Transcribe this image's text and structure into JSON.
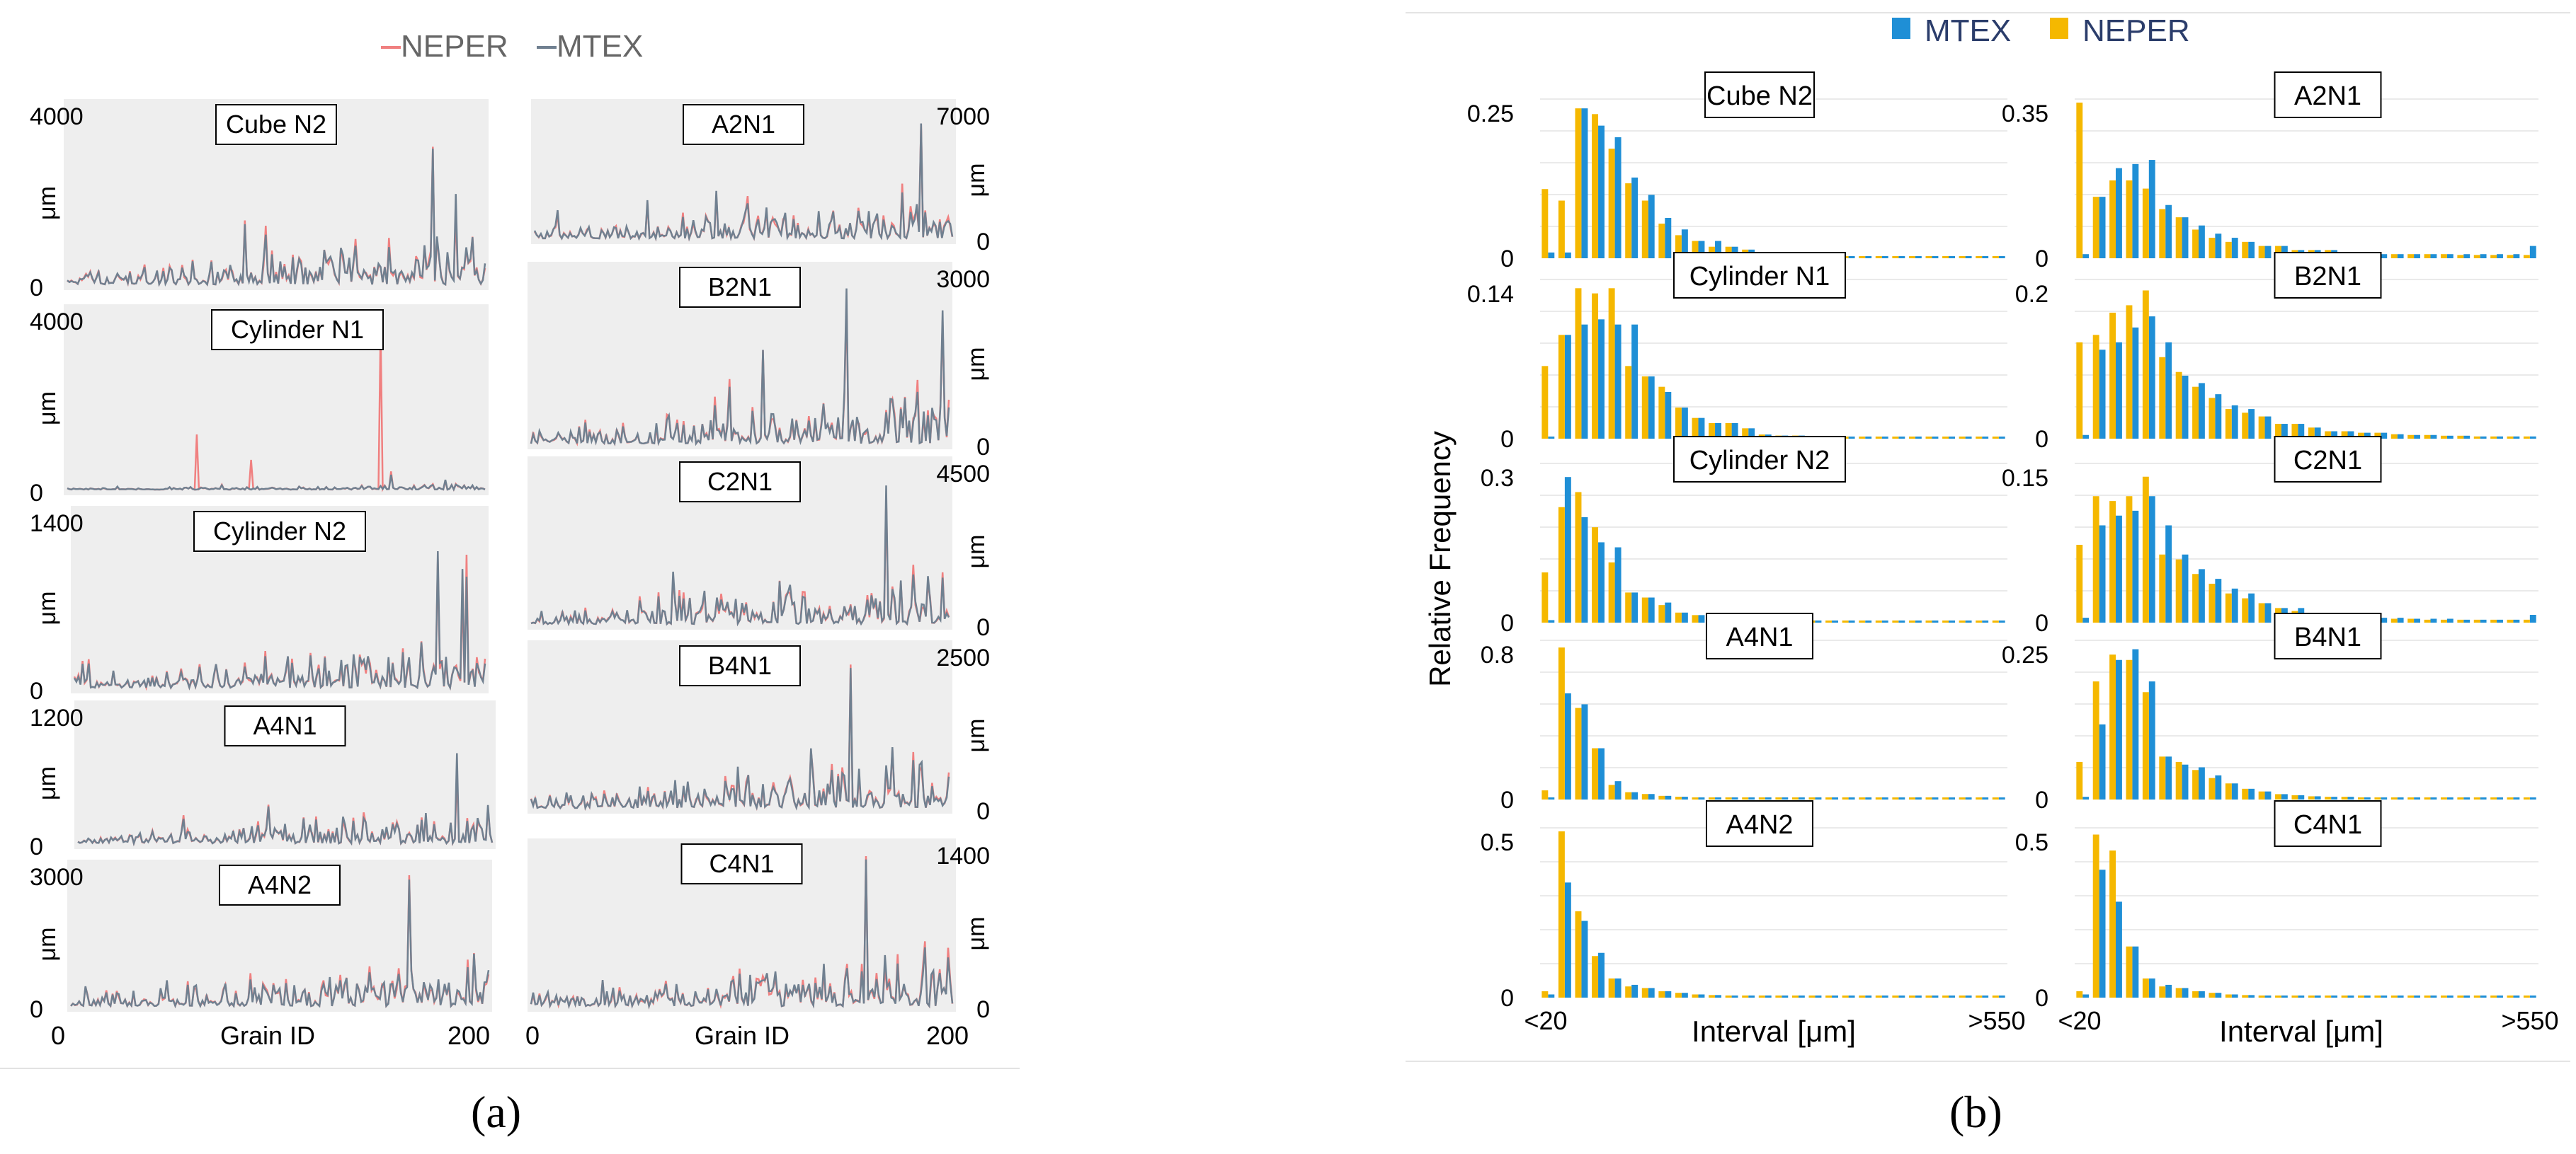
{
  "colors": {
    "neper_line": "#f08080",
    "mtex_line": "#708090",
    "mtex_bar": "#1f8fd6",
    "neper_bar": "#f5b800",
    "panel_bg": "#eeeeee",
    "grid": "#e3e3e3"
  },
  "chart_data": [
    {
      "id": "a",
      "type": "line",
      "sublabel": "(a)",
      "legend": {
        "neper": "–NEPER",
        "mtex": "–MTEX"
      },
      "x_tick_labels": [
        "0",
        "Grain ID",
        "200"
      ],
      "y_unit": "μm",
      "xlim": [
        0,
        200
      ],
      "panels": [
        {
          "title": "Cube N2",
          "ymax": 4000,
          "ytick_max": "4000",
          "ytick_min": "0",
          "peak": 3200,
          "seed": 11,
          "spikes": []
        },
        {
          "title": "Cylinder N1",
          "ymax": 4000,
          "ytick_max": "4000",
          "ytick_min": "0",
          "peak": 350,
          "seed": 23,
          "spikes": [
            [
              150,
              3800
            ],
            [
              62,
              1300
            ],
            [
              88,
              700
            ]
          ]
        },
        {
          "title": "Cylinder N2",
          "ymax": 1400,
          "ytick_max": "1400",
          "ytick_min": "0",
          "peak": 1150,
          "seed": 37,
          "spikes": []
        },
        {
          "title": "A4N1",
          "ymax": 1200,
          "ytick_max": "1200",
          "ytick_min": "0",
          "peak": 850,
          "seed": 41,
          "spikes": []
        },
        {
          "title": "A4N2",
          "ymax": 3000,
          "ytick_max": "3000",
          "ytick_min": "0",
          "peak": 2900,
          "seed": 53,
          "spikes": []
        },
        {
          "title": "A2N1",
          "ymax": 7000,
          "ytick_max": "7000",
          "ytick_min": "0",
          "peak": 6500,
          "seed": 67,
          "spikes": []
        },
        {
          "title": "B2N1",
          "ymax": 3000,
          "ytick_max": "3000",
          "ytick_min": "0",
          "peak": 2800,
          "seed": 71,
          "spikes": []
        },
        {
          "title": "C2N1",
          "ymax": 4500,
          "ytick_max": "4500",
          "ytick_min": "0",
          "peak": 4100,
          "seed": 83,
          "spikes": []
        },
        {
          "title": "B4N1",
          "ymax": 2500,
          "ytick_max": "2500",
          "ytick_min": "0",
          "peak": 2300,
          "seed": 97,
          "spikes": []
        },
        {
          "title": "C4N1",
          "ymax": 1400,
          "ytick_max": "1400",
          "ytick_min": "0",
          "peak": 1350,
          "seed": 101,
          "spikes": []
        }
      ]
    },
    {
      "id": "b",
      "type": "bar",
      "sublabel": "(b)",
      "legend": {
        "mtex": "MTEX",
        "neper": "NEPER"
      },
      "ylabel": "Relative Frequency",
      "xlabel": "Interval [μm]",
      "x_tick_labels": [
        "<20",
        ">550"
      ],
      "n_bins": 28,
      "panels": [
        {
          "title": "Cube N2",
          "ytick_max": "0.25",
          "ytick_min": "0",
          "ymax": 0.27,
          "mtex": [
            0.01,
            0.01,
            0.26,
            0.23,
            0.21,
            0.14,
            0.11,
            0.07,
            0.05,
            0.03,
            0.03,
            0.02,
            0.015,
            0.01,
            0.005,
            0.005,
            0.004,
            0.003,
            0.003,
            0.002,
            0.002,
            0.002,
            0.002,
            0.002,
            0.002,
            0.002,
            0.002,
            0.003
          ],
          "neper": [
            0.12,
            0.1,
            0.26,
            0.25,
            0.19,
            0.13,
            0.1,
            0.06,
            0.04,
            0.03,
            0.02,
            0.02,
            0.015,
            0.01,
            0.005,
            0.004,
            0.003,
            0.003,
            0.003,
            0.002,
            0.002,
            0.002,
            0.002,
            0.002,
            0.002,
            0.002,
            0.002,
            0.002
          ]
        },
        {
          "title": "A2N1",
          "ytick_max": "0.35",
          "ytick_min": "0",
          "ymax": 0.38,
          "mtex": [
            0.01,
            0.15,
            0.22,
            0.23,
            0.24,
            0.13,
            0.1,
            0.08,
            0.06,
            0.05,
            0.04,
            0.03,
            0.03,
            0.02,
            0.02,
            0.02,
            0.015,
            0.015,
            0.01,
            0.01,
            0.01,
            0.01,
            0.01,
            0.01,
            0.01,
            0.01,
            0.01,
            0.03
          ],
          "neper": [
            0.38,
            0.15,
            0.19,
            0.19,
            0.17,
            0.12,
            0.1,
            0.07,
            0.05,
            0.04,
            0.04,
            0.03,
            0.03,
            0.02,
            0.02,
            0.02,
            0.015,
            0.01,
            0.01,
            0.01,
            0.01,
            0.01,
            0.01,
            0.008,
            0.008,
            0.008,
            0.008,
            0.008
          ]
        },
        {
          "title": "Cylinder N1",
          "ytick_max": "0.14",
          "ytick_min": "0",
          "ymax": 0.15,
          "mtex": [
            0.002,
            0.1,
            0.11,
            0.115,
            0.11,
            0.11,
            0.06,
            0.045,
            0.03,
            0.02,
            0.015,
            0.015,
            0.01,
            0.004,
            0.003,
            0.003,
            0.002,
            0.002,
            0.002,
            0.002,
            0.002,
            0.002,
            0.002,
            0.002,
            0.002,
            0.002,
            0.002,
            0.002
          ],
          "neper": [
            0.07,
            0.1,
            0.145,
            0.14,
            0.145,
            0.07,
            0.06,
            0.05,
            0.03,
            0.02,
            0.015,
            0.015,
            0.01,
            0.004,
            0.003,
            0.003,
            0.002,
            0.002,
            0.002,
            0.002,
            0.002,
            0.002,
            0.002,
            0.002,
            0.002,
            0.002,
            0.002,
            0.002
          ]
        },
        {
          "title": "B2N1",
          "ytick_max": "0.2",
          "ytick_min": "0",
          "ymax": 0.21,
          "mtex": [
            0.005,
            0.12,
            0.13,
            0.15,
            0.165,
            0.13,
            0.085,
            0.075,
            0.06,
            0.045,
            0.04,
            0.03,
            0.02,
            0.02,
            0.015,
            0.01,
            0.01,
            0.008,
            0.008,
            0.006,
            0.005,
            0.005,
            0.004,
            0.004,
            0.003,
            0.003,
            0.003,
            0.003
          ],
          "neper": [
            0.13,
            0.14,
            0.17,
            0.18,
            0.2,
            0.11,
            0.09,
            0.07,
            0.055,
            0.04,
            0.035,
            0.03,
            0.02,
            0.02,
            0.015,
            0.01,
            0.01,
            0.008,
            0.008,
            0.006,
            0.005,
            0.005,
            0.004,
            0.004,
            0.003,
            0.003,
            0.003,
            0.003
          ]
        },
        {
          "title": "Cylinder N2",
          "ytick_max": "0.3",
          "ytick_min": "0",
          "ymax": 0.31,
          "mtex": [
            0.005,
            0.29,
            0.21,
            0.16,
            0.15,
            0.06,
            0.05,
            0.04,
            0.02,
            0.015,
            0.01,
            0.008,
            0.006,
            0.005,
            0.004,
            0.003,
            0.003,
            0.002,
            0.002,
            0.002,
            0.002,
            0.002,
            0.002,
            0.002,
            0.002,
            0.002,
            0.002,
            0.002
          ],
          "neper": [
            0.1,
            0.23,
            0.26,
            0.19,
            0.12,
            0.06,
            0.05,
            0.035,
            0.02,
            0.015,
            0.01,
            0.008,
            0.006,
            0.005,
            0.004,
            0.003,
            0.003,
            0.002,
            0.002,
            0.002,
            0.002,
            0.002,
            0.002,
            0.002,
            0.002,
            0.002,
            0.002,
            0.002
          ]
        },
        {
          "title": "C2N1",
          "ytick_max": "0.15",
          "ytick_min": "0",
          "ymax": 0.16,
          "mtex": [
            0.005,
            0.1,
            0.11,
            0.115,
            0.13,
            0.1,
            0.07,
            0.055,
            0.045,
            0.035,
            0.03,
            0.02,
            0.015,
            0.015,
            0.01,
            0.01,
            0.008,
            0.006,
            0.005,
            0.005,
            0.004,
            0.004,
            0.004,
            0.003,
            0.003,
            0.003,
            0.003,
            0.008
          ],
          "neper": [
            0.08,
            0.13,
            0.125,
            0.13,
            0.15,
            0.07,
            0.065,
            0.05,
            0.04,
            0.03,
            0.025,
            0.02,
            0.015,
            0.012,
            0.01,
            0.008,
            0.006,
            0.005,
            0.005,
            0.004,
            0.004,
            0.003,
            0.003,
            0.003,
            0.003,
            0.003,
            0.003,
            0.003
          ]
        },
        {
          "title": "A4N1",
          "ytick_max": "0.8",
          "ytick_min": "0",
          "ymax": 0.85,
          "mtex": [
            0.01,
            0.58,
            0.52,
            0.28,
            0.1,
            0.04,
            0.03,
            0.02,
            0.015,
            0.01,
            0.008,
            0.006,
            0.005,
            0.004,
            0.003,
            0.003,
            0.002,
            0.002,
            0.002,
            0.002,
            0.002,
            0.002,
            0.002,
            0.002,
            0.002,
            0.002,
            0.002,
            0.002
          ],
          "neper": [
            0.05,
            0.83,
            0.5,
            0.28,
            0.08,
            0.04,
            0.03,
            0.02,
            0.015,
            0.01,
            0.008,
            0.006,
            0.005,
            0.004,
            0.003,
            0.003,
            0.002,
            0.002,
            0.002,
            0.002,
            0.002,
            0.002,
            0.002,
            0.002,
            0.002,
            0.002,
            0.002,
            0.002
          ]
        },
        {
          "title": "B4N1",
          "ytick_max": "0.25",
          "ytick_min": "0",
          "ymax": 0.29,
          "mtex": [
            0.005,
            0.14,
            0.26,
            0.28,
            0.22,
            0.08,
            0.065,
            0.06,
            0.045,
            0.03,
            0.02,
            0.015,
            0.01,
            0.008,
            0.006,
            0.005,
            0.005,
            0.004,
            0.003,
            0.003,
            0.003,
            0.002,
            0.002,
            0.002,
            0.002,
            0.002,
            0.002,
            0.002
          ],
          "neper": [
            0.07,
            0.22,
            0.27,
            0.26,
            0.2,
            0.08,
            0.07,
            0.055,
            0.04,
            0.03,
            0.02,
            0.015,
            0.01,
            0.008,
            0.006,
            0.005,
            0.005,
            0.004,
            0.003,
            0.003,
            0.003,
            0.002,
            0.002,
            0.002,
            0.002,
            0.002,
            0.002,
            0.002
          ]
        },
        {
          "title": "A4N2",
          "ytick_max": "0.5",
          "ytick_min": "0",
          "ymax": 0.52,
          "mtex": [
            0.01,
            0.36,
            0.24,
            0.14,
            0.06,
            0.04,
            0.03,
            0.02,
            0.015,
            0.01,
            0.008,
            0.006,
            0.005,
            0.004,
            0.003,
            0.003,
            0.002,
            0.002,
            0.002,
            0.002,
            0.002,
            0.002,
            0.002,
            0.002,
            0.002,
            0.002,
            0.002,
            0.002
          ],
          "neper": [
            0.02,
            0.52,
            0.27,
            0.13,
            0.06,
            0.035,
            0.03,
            0.02,
            0.015,
            0.01,
            0.008,
            0.006,
            0.005,
            0.004,
            0.003,
            0.003,
            0.002,
            0.002,
            0.002,
            0.002,
            0.002,
            0.002,
            0.002,
            0.002,
            0.002,
            0.002,
            0.002,
            0.002
          ]
        },
        {
          "title": "C4N1",
          "ytick_max": "0.5",
          "ytick_min": "0",
          "ymax": 0.52,
          "mtex": [
            0.01,
            0.4,
            0.3,
            0.16,
            0.06,
            0.04,
            0.03,
            0.02,
            0.015,
            0.01,
            0.008,
            0.006,
            0.005,
            0.004,
            0.003,
            0.003,
            0.002,
            0.002,
            0.002,
            0.002,
            0.002,
            0.002,
            0.002,
            0.002,
            0.002,
            0.002,
            0.002,
            0.002
          ],
          "neper": [
            0.02,
            0.51,
            0.46,
            0.16,
            0.06,
            0.035,
            0.03,
            0.02,
            0.015,
            0.01,
            0.008,
            0.006,
            0.005,
            0.004,
            0.003,
            0.003,
            0.002,
            0.002,
            0.002,
            0.002,
            0.002,
            0.002,
            0.002,
            0.002,
            0.002,
            0.002,
            0.002,
            0.002
          ]
        }
      ]
    }
  ]
}
